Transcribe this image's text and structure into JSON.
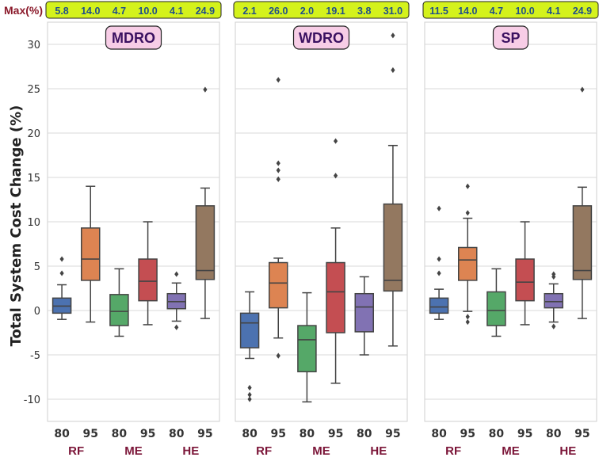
{
  "chart_data": {
    "type": "box",
    "ylabel": "Total System Cost Change (%)",
    "ylim": [
      -12.5,
      32.5
    ],
    "yticks": [
      -10,
      -5,
      0,
      5,
      10,
      15,
      20,
      25,
      30
    ],
    "ytick_labels": [
      "-10",
      "-5",
      "0",
      "5",
      "10",
      "15",
      "20",
      "25",
      "30"
    ],
    "max_label": "Max(%)",
    "xtick_labels": [
      "80",
      "95",
      "80",
      "95",
      "80",
      "95"
    ],
    "groups": [
      "RF",
      "ME",
      "HE"
    ],
    "colors": [
      "#4c72b0",
      "#dd8452",
      "#55a868",
      "#c44e52",
      "#8172b3",
      "#937860"
    ],
    "panels": [
      {
        "title": "MDRO",
        "max_values": [
          "5.8",
          "14.0",
          "4.7",
          "10.0",
          "4.1",
          "24.9"
        ],
        "boxes": [
          {
            "q1": -0.3,
            "median": 0.5,
            "q3": 1.4,
            "whislo": -1.0,
            "whishi": 2.9,
            "fliers": [
              4.2,
              5.8
            ]
          },
          {
            "q1": 3.4,
            "median": 5.8,
            "q3": 9.3,
            "whislo": -1.3,
            "whishi": 14.0,
            "fliers": []
          },
          {
            "q1": -1.7,
            "median": -0.1,
            "q3": 1.8,
            "whislo": -2.9,
            "whishi": 4.7,
            "fliers": []
          },
          {
            "q1": 1.1,
            "median": 3.3,
            "q3": 5.8,
            "whislo": -1.6,
            "whishi": 10.0,
            "fliers": []
          },
          {
            "q1": 0.2,
            "median": 1.0,
            "q3": 1.9,
            "whislo": -1.2,
            "whishi": 3.1,
            "fliers": [
              4.1,
              -1.9
            ]
          },
          {
            "q1": 3.5,
            "median": 4.5,
            "q3": 11.8,
            "whislo": -0.9,
            "whishi": 13.8,
            "fliers": [
              24.9
            ]
          }
        ]
      },
      {
        "title": "WDRO",
        "max_values": [
          "2.1",
          "26.0",
          "2.0",
          "19.1",
          "3.8",
          "31.0"
        ],
        "boxes": [
          {
            "q1": -4.2,
            "median": -1.4,
            "q3": -0.3,
            "whislo": -5.4,
            "whishi": 2.1,
            "fliers": [
              -8.7,
              -9.5,
              -10.0
            ]
          },
          {
            "q1": 0.3,
            "median": 3.1,
            "q3": 5.4,
            "whislo": -3.1,
            "whishi": 5.9,
            "fliers": [
              14.8,
              15.8,
              16.6,
              26.0,
              -5.1
            ]
          },
          {
            "q1": -6.9,
            "median": -3.3,
            "q3": -1.7,
            "whislo": -10.3,
            "whishi": 2.0,
            "fliers": []
          },
          {
            "q1": -2.5,
            "median": 2.1,
            "q3": 5.4,
            "whislo": -8.2,
            "whishi": 9.3,
            "fliers": [
              15.2,
              19.1
            ]
          },
          {
            "q1": -2.4,
            "median": 0.4,
            "q3": 1.9,
            "whislo": -5.0,
            "whishi": 3.8,
            "fliers": []
          },
          {
            "q1": 2.2,
            "median": 3.4,
            "q3": 12.0,
            "whislo": -4.0,
            "whishi": 18.6,
            "fliers": [
              27.1,
              31.0
            ]
          }
        ]
      },
      {
        "title": "SP",
        "max_values": [
          "11.5",
          "14.0",
          "4.7",
          "10.0",
          "4.1",
          "24.9"
        ],
        "boxes": [
          {
            "q1": -0.3,
            "median": 0.4,
            "q3": 1.4,
            "whislo": -1.0,
            "whishi": 2.4,
            "fliers": [
              4.2,
              5.8,
              11.5
            ]
          },
          {
            "q1": 3.4,
            "median": 5.7,
            "q3": 7.1,
            "whislo": -0.1,
            "whishi": 10.4,
            "fliers": [
              11.0,
              14.0,
              -0.7,
              -1.3
            ]
          },
          {
            "q1": -1.7,
            "median": 0.0,
            "q3": 2.1,
            "whislo": -2.9,
            "whishi": 4.7,
            "fliers": []
          },
          {
            "q1": 1.1,
            "median": 3.2,
            "q3": 5.8,
            "whislo": -1.6,
            "whishi": 10.0,
            "fliers": []
          },
          {
            "q1": 0.3,
            "median": 1.0,
            "q3": 1.9,
            "whislo": -1.3,
            "whishi": 3.0,
            "fliers": [
              4.1,
              3.8,
              -1.8
            ]
          },
          {
            "q1": 3.5,
            "median": 4.5,
            "q3": 11.8,
            "whislo": -0.9,
            "whishi": 13.9,
            "fliers": [
              24.9
            ]
          }
        ]
      }
    ]
  }
}
